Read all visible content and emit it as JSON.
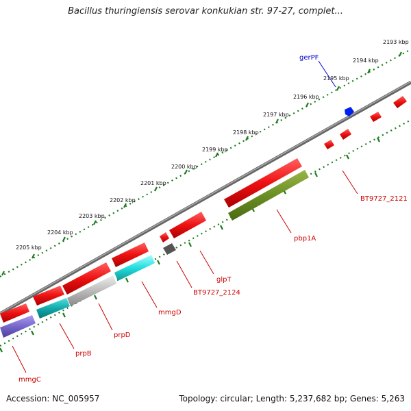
{
  "title": "Bacillus thuringiensis serovar konkukian str. 97-27, complet...",
  "footer": {
    "accession": "Accession: NC_005957",
    "topology": "Topology: circular; Length: 5,237,682 bp; Genes: 5,263"
  },
  "scale_ticks": [
    "2193 kbp",
    "2194 kbp",
    "2195 kbp",
    "2196 kbp",
    "2197 kbp",
    "2198 kbp",
    "2199 kbp",
    "2200 kbp",
    "2201 kbp",
    "2202 kbp",
    "2203 kbp",
    "2204 kbp",
    "2205 kbp"
  ],
  "gene_labels": [
    {
      "text": "gerPF",
      "color": "#0000cc"
    },
    {
      "text": "BT9727_2121",
      "color": "#cc0000"
    },
    {
      "text": "pbp1A",
      "color": "#cc0000"
    },
    {
      "text": "glpT",
      "color": "#cc0000"
    },
    {
      "text": "BT9727_2124",
      "color": "#cc0000"
    },
    {
      "text": "mmgD",
      "color": "#cc0000"
    },
    {
      "text": "prpD",
      "color": "#cc0000"
    },
    {
      "text": "prpB",
      "color": "#cc0000"
    },
    {
      "text": "mmgC",
      "color": "#cc0000"
    }
  ],
  "colors": {
    "forward_cds": "#ee1111",
    "reverse_cds": "#ee1111",
    "backbone": "#777777",
    "tick_dots": "#1a7a1a",
    "gerPF": "#0022ee",
    "pbp1A_track": "#6b8e23",
    "cyan_track": "#22dddd",
    "grey_track": "#bbbbbb",
    "purple_track": "#7766cc",
    "small_grey": "#555555"
  }
}
